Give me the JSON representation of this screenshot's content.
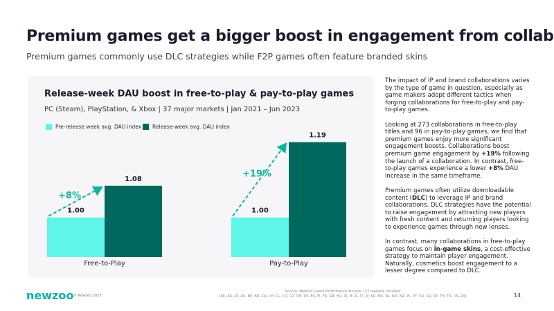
{
  "header": {
    "title": "Premium games get a bigger boost in engagement from collaborations",
    "subtitle": "Premium games commonly use DLC strategies while F2P games often feature branded skins"
  },
  "chart_data": {
    "type": "bar",
    "title": "Release-week DAU boost in free-to-play & pay-to-play games",
    "subtitle": "PC (Steam), PlayStation, & Xbox | 37 major markets | Jan 2021 – Jun 2023",
    "categories": [
      "Free-to-Play",
      "Pay-to-Play"
    ],
    "series": [
      {
        "name": "Pre-release week avg. DAU index",
        "color": "#5ff5e8",
        "values": [
          1.0,
          1.0
        ],
        "value_labels": [
          "1.00",
          "1.00"
        ]
      },
      {
        "name": "Release-week avg. DAU index",
        "color": "#00685c",
        "values": [
          1.08,
          1.19
        ],
        "value_labels": [
          "1.08",
          "1.19"
        ]
      }
    ],
    "annotations": [
      "+8%",
      "+19%"
    ],
    "annotation_color": "#12b3a3",
    "ylim": [
      0.9,
      1.2
    ],
    "legend": "top-left"
  },
  "body": {
    "paragraphs": [
      [
        "The impact of IP and brand collaborations varies by the type of game in question, especially as game makers adopt different tactics when forging collaborations for free-to-play and pay-to-play games."
      ],
      [
        "Looking at 273 collaborations in free-to-play titles and 96 in pay-to-play games, we find that premium games enjoy more significant engagement boosts. Collaborations boost premium game engagement by ",
        {
          "text": "+19%",
          "bold": true
        },
        " following the launch of a collaboration. In contrast, free-to-play games experience a lower ",
        {
          "text": "+8%",
          "bold": true
        },
        " DAU increase in the same timeframe."
      ],
      [
        "Premium games often utilize downloadable content (",
        {
          "text": "DLC",
          "bold": true
        },
        ") to leverage IP and brand collaborations. DLC strategies have the potential to raise engagement by attracting new players with fresh content and returning players looking to experience games through new lenses."
      ],
      [
        "In contrast, many collaborations in free-to-play games focus on ",
        {
          "text": "in-game skins",
          "bold": true
        },
        ", a cost-effective strategy to maintain player engagement. Naturally, cosmetics boost engagement to a lesser degree compared to DLC."
      ]
    ]
  },
  "footer": {
    "logo": "newzoo",
    "copyright": "© Newzoo 2023",
    "source": [
      "Source: Newzoo Game Performance Monitor | 37 markets included",
      "(AE, AR, AT, AU, BE, BR, CA, CH, CL, CO, CZ, DE, DK, ES, FI, FR, GB, HU, ID, IE, IL, IT, JP, KR, MX, NL, NO, NZ, PL, PT, RU, SA, SE, TH, TR, US, ZA)"
    ],
    "page": "14"
  }
}
